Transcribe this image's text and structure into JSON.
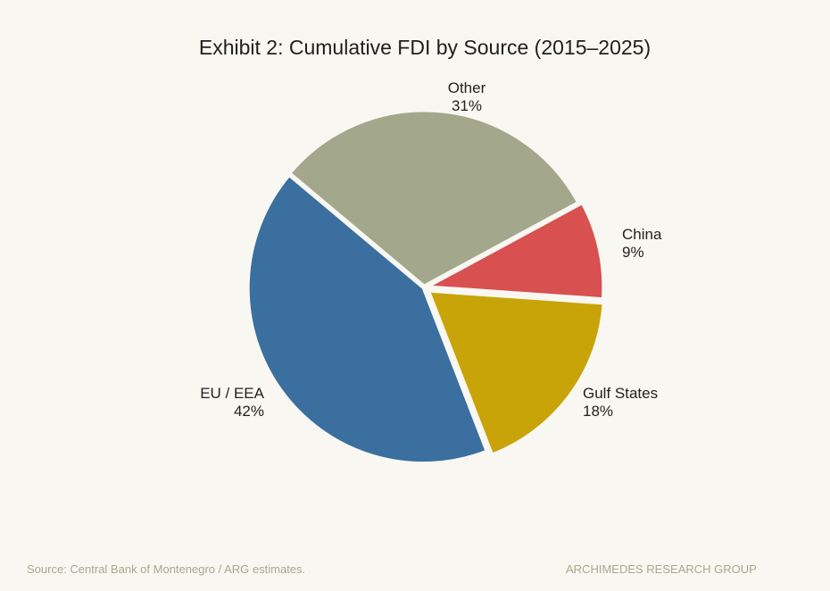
{
  "chart_data": {
    "type": "pie",
    "title": "Exhibit 2: Cumulative FDI by Source (2015–2025)",
    "slices": [
      {
        "label": "Other",
        "value": 31,
        "value_label": "31%",
        "color": "#a3a78b"
      },
      {
        "label": "China",
        "value": 9,
        "value_label": "9%",
        "color": "#d95050"
      },
      {
        "label": "Gulf States",
        "value": 18,
        "value_label": "18%",
        "color": "#c9a409"
      },
      {
        "label": "EU / EEA",
        "value": 42,
        "value_label": "42%",
        "color": "#3a6f9f"
      }
    ],
    "legend": "none"
  },
  "footer": {
    "source": "Source: Central Bank of Montenegro / ARG estimates.",
    "brand": "ARCHIMEDES RESEARCH GROUP"
  }
}
